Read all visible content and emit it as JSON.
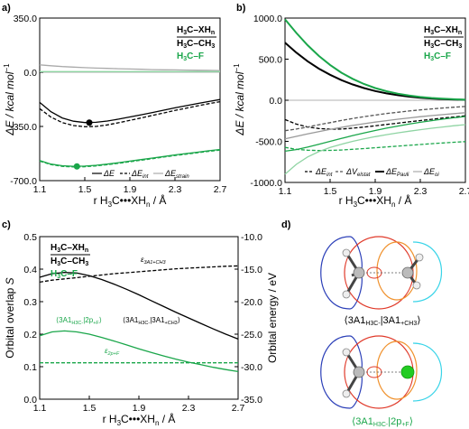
{
  "chart_data": [
    {
      "panel": "a)",
      "type": "line",
      "xlabel": "r H3C•••XHn / Å",
      "ylabel": "ΔE / kcal mol⁻¹",
      "xlim": [
        1.1,
        2.7
      ],
      "ylim": [
        -700,
        350
      ],
      "xticks": [
        "1.1",
        "1.5",
        "1.9",
        "2.3",
        "2.7"
      ],
      "yticks": [
        "350.0",
        "0.0",
        "-350.0",
        "-700.0"
      ],
      "key_lines": [
        "H3C–XHn",
        "H3C–CH3",
        "H3C–F"
      ],
      "legend": [
        "ΔE",
        "ΔEint",
        "ΔEstrain"
      ],
      "x": [
        1.1,
        1.2,
        1.3,
        1.4,
        1.5,
        1.6,
        1.7,
        1.8,
        1.9,
        2.0,
        2.1,
        2.2,
        2.3,
        2.4,
        2.5,
        2.6,
        2.7
      ],
      "series": [
        {
          "name": "H3C–CH3 ΔE",
          "color": "#000000",
          "dash": "solid",
          "values": [
            -195,
            -255,
            -295,
            -316,
            -325,
            -323,
            -315,
            -303,
            -289,
            -275,
            -260,
            -245,
            -230,
            -216,
            -202,
            -189,
            -176
          ]
        },
        {
          "name": "H3C–CH3 ΔEint",
          "color": "#000000",
          "dash": "dashed",
          "values": [
            -235,
            -290,
            -325,
            -344,
            -352,
            -350,
            -340,
            -326,
            -311,
            -295,
            -279,
            -263,
            -247,
            -232,
            -217,
            -203,
            -190
          ]
        },
        {
          "name": "H3C–CH3 ΔEstrain",
          "color": "#aaaaaa",
          "dash": "solid",
          "values": [
            48,
            42,
            37,
            33,
            30,
            27,
            25,
            23,
            21,
            19,
            17,
            16,
            15,
            14,
            13,
            12,
            11
          ]
        },
        {
          "name": "H3C–F ΔE",
          "color": "#1aa64a",
          "dash": "solid",
          "values": [
            -570,
            -593,
            -604,
            -608,
            -606,
            -601,
            -593,
            -584,
            -574,
            -564,
            -554,
            -544,
            -534,
            -525,
            -516,
            -507,
            -499
          ]
        },
        {
          "name": "H3C–F ΔEint",
          "color": "#1aa64a",
          "dash": "dashed",
          "values": [
            -574,
            -597,
            -608,
            -612,
            -610,
            -605,
            -597,
            -588,
            -578,
            -568,
            -558,
            -548,
            -538,
            -529,
            -520,
            -511,
            -503
          ]
        },
        {
          "name": "H3C–F ΔEstrain",
          "color": "#8fd4a3",
          "dash": "solid",
          "values": [
            4,
            4,
            4,
            4,
            4,
            4,
            4,
            4,
            4,
            4,
            4,
            4,
            4,
            4,
            4,
            4,
            4
          ]
        }
      ],
      "markers": [
        {
          "series": "H3C–CH3 ΔE",
          "x": 1.54,
          "y": -325,
          "color": "#000000"
        },
        {
          "series": "H3C–F ΔE",
          "x": 1.43,
          "y": -608,
          "color": "#1aa64a"
        }
      ]
    },
    {
      "panel": "b)",
      "type": "line",
      "xlabel": "r H3C•••XHn / Å",
      "ylabel": "ΔE / kcal mol⁻¹",
      "xlim": [
        1.1,
        2.7
      ],
      "ylim": [
        -1000,
        1000
      ],
      "xticks": [
        "1.1",
        "1.5",
        "1.9",
        "2.3",
        "2.7"
      ],
      "yticks": [
        "1000.0",
        "500.0",
        "0.0",
        "-500.0",
        "-1000.0"
      ],
      "key_lines": [
        "H3C–XHn",
        "H3C–CH3",
        "H3C–F"
      ],
      "legend": [
        "ΔEint",
        "ΔVelstat",
        "ΔEPauli",
        "ΔEoi"
      ],
      "x": [
        1.1,
        1.2,
        1.3,
        1.4,
        1.5,
        1.6,
        1.7,
        1.8,
        1.9,
        2.0,
        2.1,
        2.2,
        2.3,
        2.4,
        2.5,
        2.6,
        2.7
      ],
      "series": [
        {
          "name": "H3C–CH3 ΔEPauli",
          "color": "#000000",
          "dash": "solid",
          "values": [
            700,
            580,
            475,
            385,
            310,
            245,
            192,
            148,
            112,
            84,
            62,
            44,
            31,
            21,
            14,
            9,
            5
          ]
        },
        {
          "name": "H3C–F ΔEPauli",
          "color": "#1aa64a",
          "dash": "solid",
          "values": [
            985,
            820,
            670,
            540,
            430,
            335,
            260,
            198,
            148,
            110,
            80,
            58,
            40,
            28,
            19,
            12,
            7
          ]
        },
        {
          "name": "H3C–CH3 ΔEint",
          "color": "#000000",
          "dash": "dashed",
          "values": [
            -235,
            -290,
            -325,
            -344,
            -352,
            -350,
            -340,
            -326,
            -311,
            -295,
            -279,
            -263,
            -247,
            -232,
            -217,
            -203,
            -190
          ]
        },
        {
          "name": "H3C–F ΔEint",
          "color": "#1aa64a",
          "dash": "dashed",
          "values": [
            -574,
            -597,
            -608,
            -612,
            -610,
            -605,
            -597,
            -588,
            -578,
            -568,
            -558,
            -548,
            -538,
            -529,
            -520,
            -511,
            -503
          ]
        },
        {
          "name": "H3C–CH3 ΔVelstat",
          "color": "#555555",
          "dash": "dashed",
          "values": [
            -370,
            -350,
            -325,
            -298,
            -272,
            -246,
            -222,
            -200,
            -180,
            -162,
            -146,
            -131,
            -118,
            -106,
            -95,
            -85,
            -76
          ]
        },
        {
          "name": "H3C–F ΔVelstat",
          "color": "#1aa64a",
          "dash": "solid",
          "values": [
            -620,
            -600,
            -570,
            -535,
            -500,
            -465,
            -430,
            -398,
            -368,
            -340,
            -314,
            -290,
            -268,
            -248,
            -230,
            -213,
            -198
          ]
        },
        {
          "name": "H3C–CH3 ΔEoi",
          "color": "#999999",
          "dash": "solid",
          "values": [
            -470,
            -440,
            -410,
            -382,
            -355,
            -330,
            -307,
            -286,
            -266,
            -248,
            -231,
            -215,
            -200,
            -187,
            -175,
            -163,
            -152
          ]
        },
        {
          "name": "H3C–F ΔEoi",
          "color": "#8fd4a3",
          "dash": "solid",
          "values": [
            -900,
            -780,
            -690,
            -625,
            -575,
            -535,
            -500,
            -470,
            -443,
            -419,
            -397,
            -377,
            -358,
            -341,
            -325,
            -310,
            -297
          ]
        }
      ],
      "zero_line": true
    },
    {
      "panel": "c)",
      "type": "line",
      "xlabel": "r H3C•••XHn / Å",
      "ylabel": "Orbital overlap S",
      "y2label": "Orbital energy / eV",
      "xlim": [
        1.1,
        2.7
      ],
      "ylim": [
        0.0,
        0.5
      ],
      "y2lim": [
        -35.0,
        -10.0
      ],
      "xticks": [
        "1.1",
        "1.5",
        "1.9",
        "2.3",
        "2.7"
      ],
      "yticks": [
        "0.5",
        "0.4",
        "0.3",
        "0.2",
        "0.1",
        "0.0"
      ],
      "y2ticks": [
        "-10.0",
        "-15.0",
        "-20.0",
        "-25.0",
        "-30.0",
        "-35.0"
      ],
      "key_lines": [
        "H3C–XHn",
        "H3C–CH3",
        "H3C–F"
      ],
      "x": [
        1.1,
        1.2,
        1.3,
        1.4,
        1.5,
        1.6,
        1.7,
        1.8,
        1.9,
        2.0,
        2.1,
        2.2,
        2.3,
        2.4,
        2.5,
        2.6,
        2.7
      ],
      "series": [
        {
          "name": "⟨3A1H3C|3A1+CH3⟩",
          "axis": "left",
          "color": "#000000",
          "dash": "solid",
          "values": [
            0.375,
            0.386,
            0.39,
            0.388,
            0.38,
            0.368,
            0.354,
            0.338,
            0.321,
            0.303,
            0.285,
            0.267,
            0.25,
            0.233,
            0.216,
            0.2,
            0.185
          ]
        },
        {
          "name": "⟨3A1H3C|2p+F⟩",
          "axis": "left",
          "color": "#1aa64a",
          "dash": "solid",
          "values": [
            0.195,
            0.207,
            0.21,
            0.207,
            0.2,
            0.19,
            0.179,
            0.167,
            0.155,
            0.144,
            0.133,
            0.123,
            0.114,
            0.106,
            0.098,
            0.091,
            0.085
          ]
        },
        {
          "name": "ε3A1+CH3",
          "axis": "right",
          "color": "#000000",
          "dash": "dashed",
          "values": [
            -17.0,
            -16.7,
            -16.5,
            -16.3,
            -16.1,
            -15.9,
            -15.7,
            -15.55,
            -15.4,
            -15.25,
            -15.1,
            -14.95,
            -14.85,
            -14.75,
            -14.65,
            -14.55,
            -14.5
          ]
        },
        {
          "name": "ε2p+F",
          "axis": "right",
          "color": "#1aa64a",
          "dash": "dashed",
          "values": [
            -29.4,
            -29.4,
            -29.4,
            -29.4,
            -29.4,
            -29.4,
            -29.4,
            -29.4,
            -29.4,
            -29.4,
            -29.4,
            -29.4,
            -29.4,
            -29.4,
            -29.4,
            -29.4,
            -29.4
          ]
        }
      ],
      "annotations": [
        "ε3A1+CH3",
        "⟨3A1H3C-|2p+F⟩",
        "⟨3A1H3C-|3A1+CH3⟩",
        "ε2p+F"
      ]
    }
  ],
  "panels": {
    "a": {
      "label": "a)"
    },
    "b": {
      "label": "b)"
    },
    "c": {
      "label": "c)"
    },
    "d": {
      "label": "d)"
    }
  },
  "key": {
    "row1_main": "H",
    "row1_sub": "3",
    "row1_rest": "C–XH",
    "row1_subn": "n",
    "row2_main": "H",
    "row2_sub": "3",
    "row2_rest": "C–CH",
    "row2_sub2": "3",
    "row3_main": "H",
    "row3_sub": "3",
    "row3_rest": "C–F"
  },
  "axes_text": {
    "xlabel_r": "r H",
    "xlabel_3": "3",
    "xlabel_mid": "C•••XH",
    "xlabel_n": "n",
    "xlabel_unit": " / Å",
    "ylabel_E": "ΔE / kcal mol",
    "ylabel_exp": "−1",
    "ylabel_S": "Orbital overlap ",
    "ylabel_S_sym": "S",
    "ylabel_orb": "Orbital energy / eV"
  },
  "legend_a": {
    "e": "ΔE",
    "eint": "ΔE",
    "eint_sub": "int",
    "estrain": "ΔE",
    "estrain_sub": "strain"
  },
  "legend_b": {
    "eint": "ΔE",
    "eint_sub": "int",
    "velstat": "ΔV",
    "velstat_sub": "elstat",
    "epauli": "ΔE",
    "epauli_sub": "Pauli",
    "eoi": "ΔE",
    "eoi_sub": "oi"
  },
  "annot_c": {
    "eps_ch3": "ε",
    "eps_ch3_sub": "3A1+CH3",
    "s_f_open": "⟨3A1",
    "s_f_sub": "H3C-",
    "s_f_close": "|2p",
    "s_f_sub2": "+F",
    "s_f_end": "⟩",
    "s_c_open": "⟨3A1",
    "s_c_sub": "H3C-",
    "s_c_close": "|3A1",
    "s_c_sub2": "+CH3",
    "s_c_end": "⟩",
    "eps_f": "ε",
    "eps_f_sub": "2p+F"
  },
  "captions_d": {
    "top_open": "⟨3A1",
    "top_sub": "H3C-",
    "top_close": "|3A1",
    "top_sub2": "+CH3",
    "top_end": "⟩",
    "bot_open": "⟨3A1",
    "bot_sub": "H3C-",
    "bot_close": "|2p",
    "bot_sub2": "+F",
    "bot_end": "⟩"
  },
  "colors": {
    "black": "#000000",
    "green": "#1aa64a",
    "lightgreen": "#8fd4a3",
    "gray": "#aaaaaa",
    "orbital_blue": "#2b3fb8",
    "orbital_red": "#e03a2a",
    "orbital_orange": "#f0922e",
    "orbital_cyan": "#39d4e8",
    "atom_F": "#22cc22"
  }
}
